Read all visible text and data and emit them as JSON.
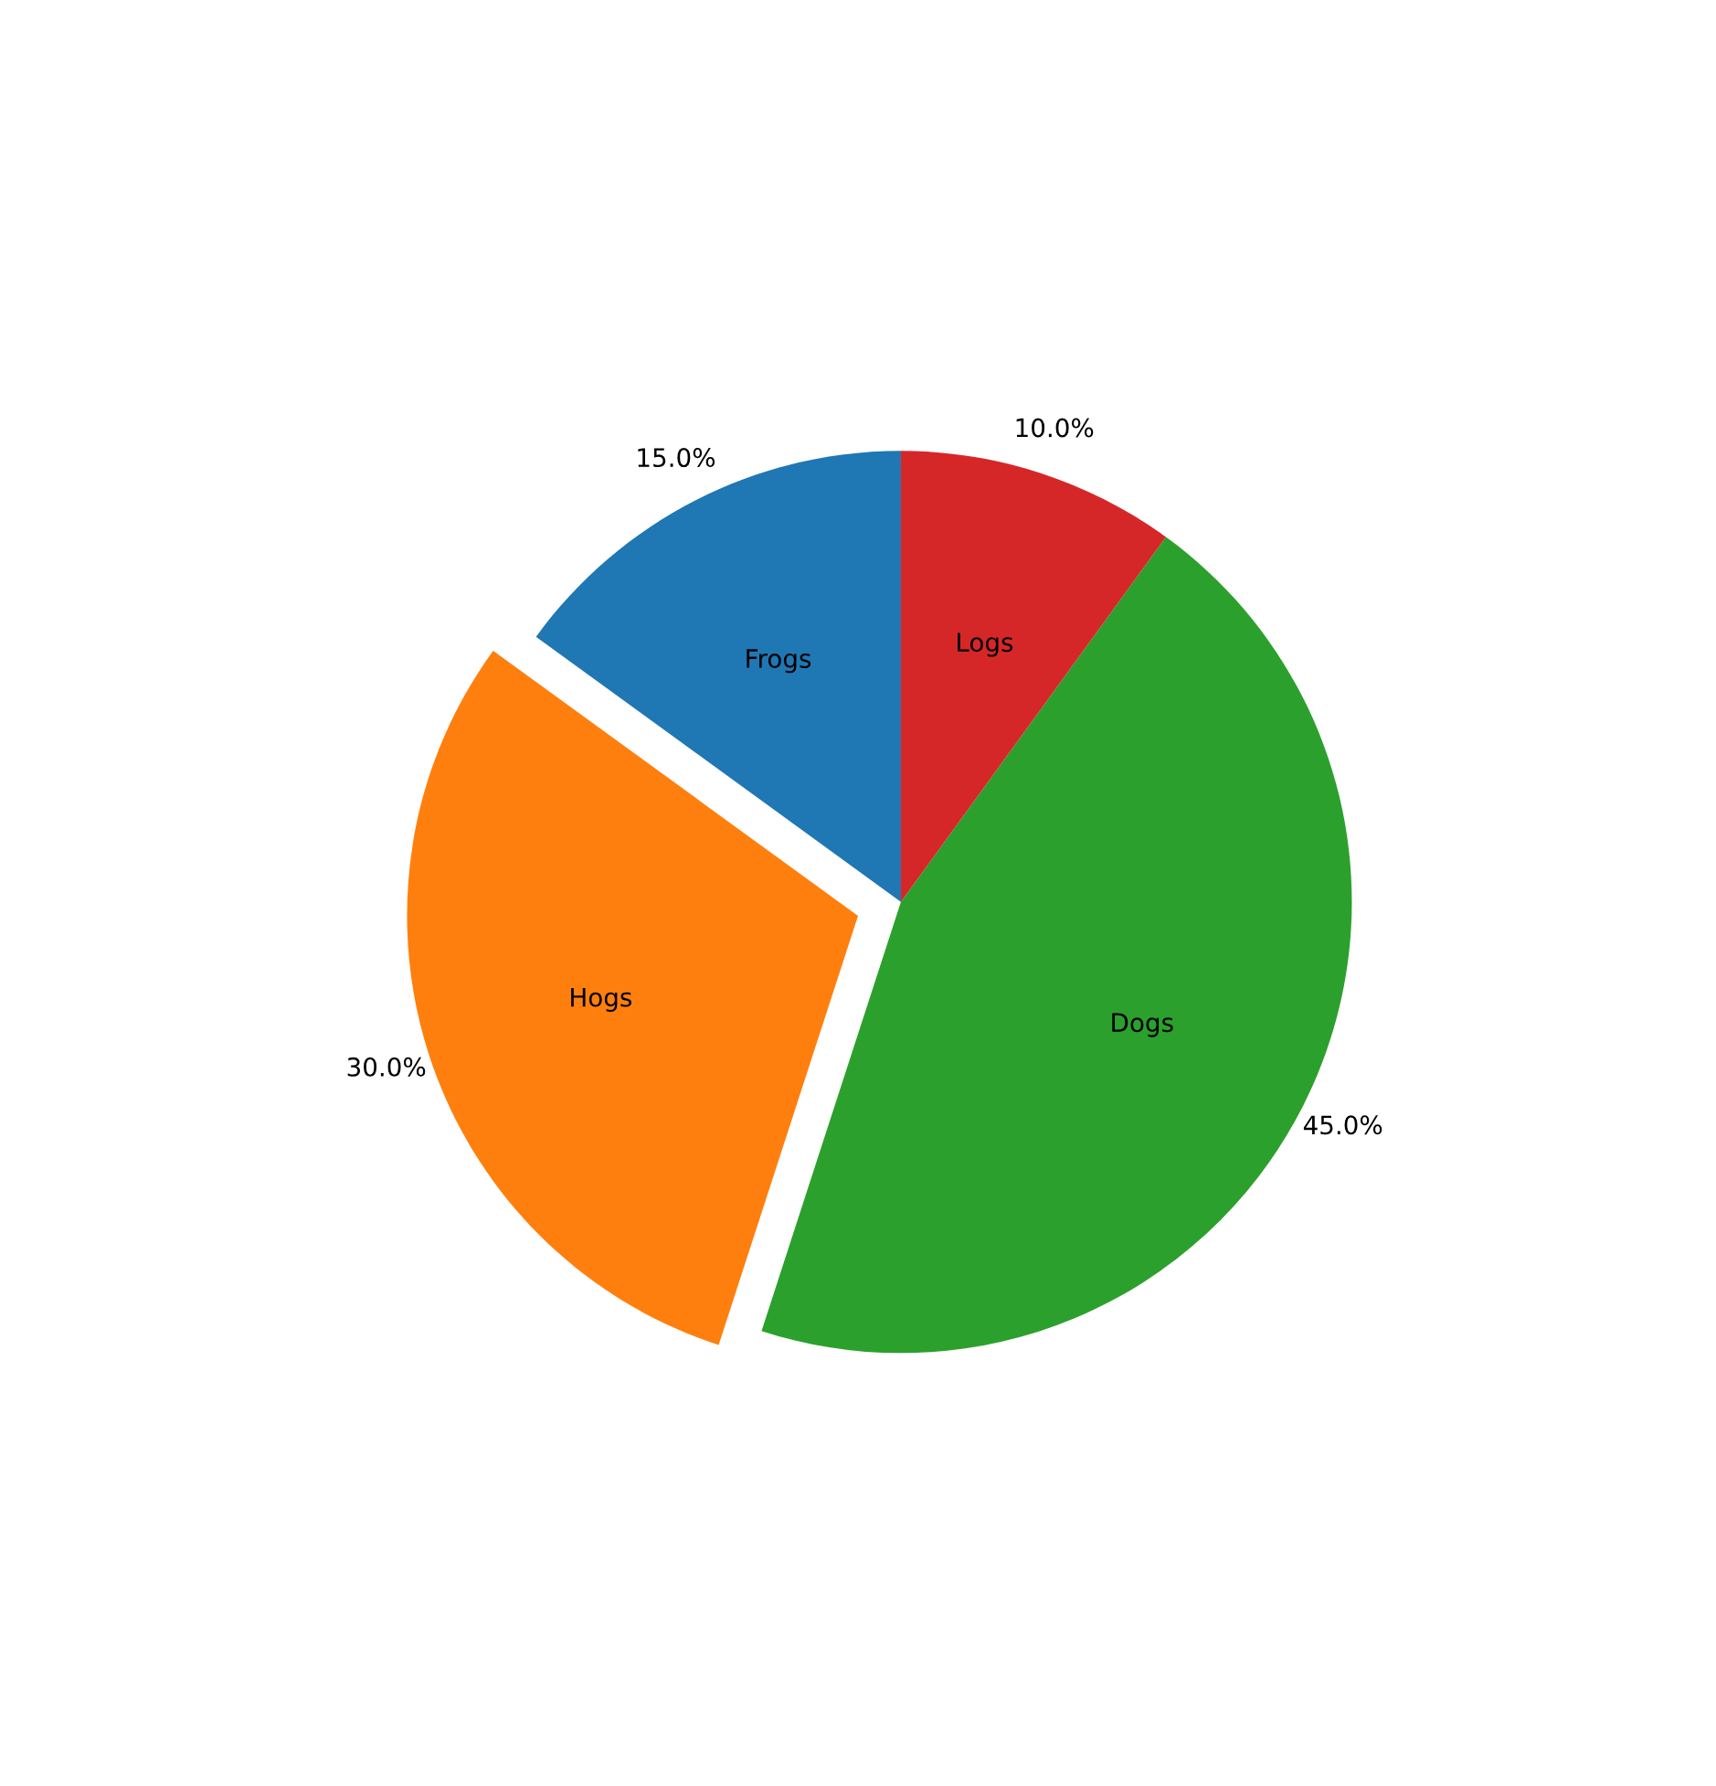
{
  "chart_data": {
    "type": "pie",
    "categories": [
      "Frogs",
      "Hogs",
      "Dogs",
      "Logs"
    ],
    "values": [
      15,
      30,
      45,
      10
    ],
    "value_labels": [
      "15.0%",
      "30.0%",
      "45.0%",
      "10.0%"
    ],
    "colors": [
      "#1f77b4",
      "#ff7f0e",
      "#2ca02c",
      "#d62728"
    ]
  }
}
